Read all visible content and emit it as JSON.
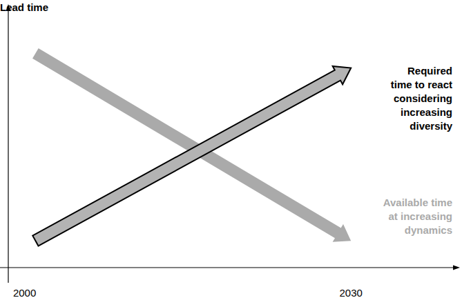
{
  "chart_data": {
    "type": "line",
    "y_label": "Lead time",
    "x": [
      2001,
      2030
    ],
    "xlim": [
      1998.5,
      2039
    ],
    "xticks": [
      2000,
      2030
    ],
    "ylim": [
      0,
      100
    ],
    "yticks": [],
    "tick_labels": "x",
    "series": [
      {
        "name": "Required\ntime to react\nconsidering\nincreasing\ndiversity",
        "color": "#000000",
        "marker": "arrow",
        "line_style": "outlined",
        "values": [
          11,
          82
        ]
      },
      {
        "name": "Available time\nat increasing\ndynamics",
        "color": "#aaaaaa",
        "marker": "arrow",
        "line_style": "solid",
        "values": [
          88,
          11
        ]
      }
    ]
  }
}
